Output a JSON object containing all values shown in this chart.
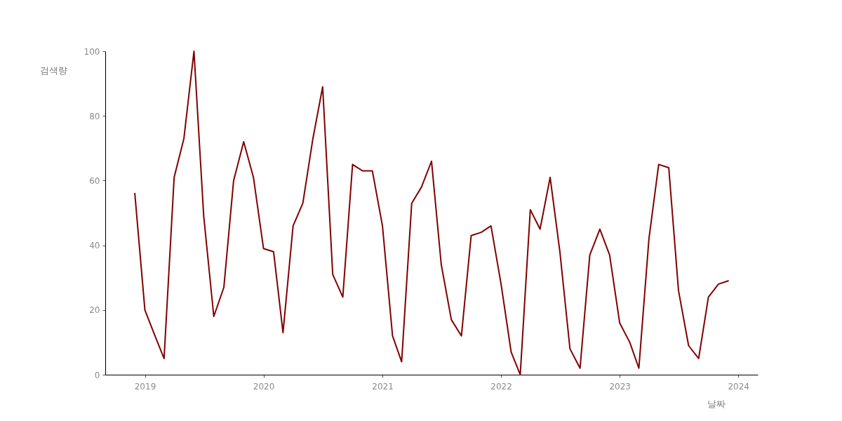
{
  "chart_data": {
    "type": "line",
    "xlabel": "날짜",
    "ylabel": "검색량",
    "x": [
      "2018-12",
      "2019-01",
      "2019-02",
      "2019-03",
      "2019-04",
      "2019-05",
      "2019-06",
      "2019-07",
      "2019-08",
      "2019-09",
      "2019-10",
      "2019-11",
      "2019-12",
      "2020-01",
      "2020-02",
      "2020-03",
      "2020-04",
      "2020-05",
      "2020-06",
      "2020-07",
      "2020-08",
      "2020-09",
      "2020-10",
      "2020-11",
      "2020-12",
      "2021-01",
      "2021-02",
      "2021-03",
      "2021-04",
      "2021-05",
      "2021-06",
      "2021-07",
      "2021-08",
      "2021-09",
      "2021-10",
      "2021-11",
      "2021-12",
      "2022-01",
      "2022-02",
      "2022-03",
      "2022-04",
      "2022-05",
      "2022-06",
      "2022-07",
      "2022-08",
      "2022-09",
      "2022-10",
      "2022-11",
      "2022-12",
      "2023-01",
      "2023-02",
      "2023-03",
      "2023-04",
      "2023-05",
      "2023-06",
      "2023-07",
      "2023-08",
      "2023-09",
      "2023-10",
      "2023-11",
      "2023-12"
    ],
    "series": [
      {
        "color": "#800000",
        "values": [
          56,
          20,
          12,
          5,
          61,
          73,
          100,
          49,
          18,
          27,
          60,
          72,
          61,
          39,
          38,
          13,
          46,
          53,
          73,
          89,
          31,
          24,
          65,
          63,
          63,
          46,
          12,
          4,
          53,
          58,
          66,
          34,
          17,
          12,
          43,
          44,
          46,
          28,
          7,
          0,
          51,
          45,
          61,
          38,
          8,
          2,
          37,
          45,
          37,
          16,
          10,
          2,
          42,
          65,
          64,
          26,
          9,
          5,
          24,
          28,
          29
        ]
      }
    ],
    "xlim": [
      "2018-09-01",
      "2024-03-01"
    ],
    "xticks": [
      "2019",
      "2020",
      "2021",
      "2022",
      "2023",
      "2024"
    ],
    "ylim": [
      0,
      100
    ],
    "yticks": [
      0,
      20,
      40,
      60,
      80,
      100
    ],
    "line_style": "solid"
  }
}
